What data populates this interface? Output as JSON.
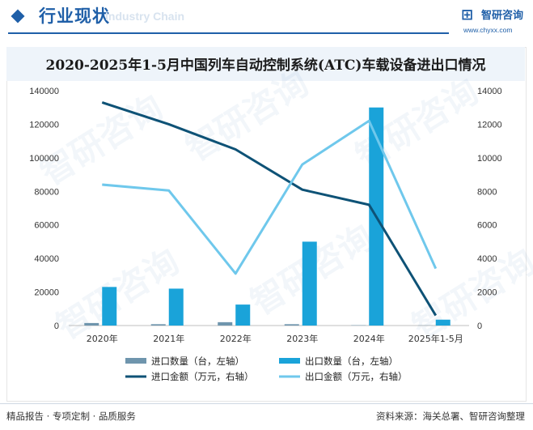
{
  "header": {
    "title": "行业现状",
    "watermark": "Industry Chain"
  },
  "logo": {
    "name": "智研咨询",
    "url": "www.chyxx.com"
  },
  "chart_data": {
    "type": "bar",
    "title": "2020-2025年1-5月中国列车自动控制系统(ATC)车载设备进出口情况",
    "categories": [
      "2020年",
      "2021年",
      "2022年",
      "2023年",
      "2024年",
      "2025年1-5月"
    ],
    "left_axis": {
      "ylim": [
        0,
        140000
      ],
      "ticks": [
        "0",
        "20000",
        "40000",
        "60000",
        "80000",
        "100000",
        "120000",
        "140000"
      ]
    },
    "right_axis": {
      "ylim": [
        0,
        14000
      ],
      "ticks": [
        "0",
        "2000",
        "4000",
        "6000",
        "8000",
        "10000",
        "12000",
        "14000"
      ]
    },
    "grid": false,
    "legend_position": "bottom",
    "series": [
      {
        "name": "进口数量（台，左轴）",
        "type": "bar",
        "axis": "left",
        "color": "#6f95ad",
        "values": [
          1500,
          800,
          2000,
          800,
          200,
          100
        ]
      },
      {
        "name": "出口数量（台，左轴）",
        "type": "bar",
        "axis": "left",
        "color": "#1aa3d9",
        "values": [
          23000,
          22000,
          12500,
          50000,
          130000,
          3500
        ]
      },
      {
        "name": "进口金额（万元，右轴）",
        "type": "line",
        "axis": "right",
        "color": "#0e5276",
        "values": [
          13300,
          12000,
          10500,
          8100,
          7200,
          600
        ]
      },
      {
        "name": "出口金额（万元，右轴）",
        "type": "line",
        "axis": "right",
        "color": "#6fc8ec",
        "values": [
          8400,
          8050,
          3100,
          9600,
          12200,
          3400
        ]
      }
    ]
  },
  "footer": {
    "left": "精品报告 · 专项定制 · 品质服务",
    "right": "资料来源：海关总署、智研咨询整理"
  },
  "watermarks": [
    "智研咨询",
    "智研咨询",
    "智研咨询",
    "智研咨询",
    "智研咨询",
    "智研咨询"
  ]
}
